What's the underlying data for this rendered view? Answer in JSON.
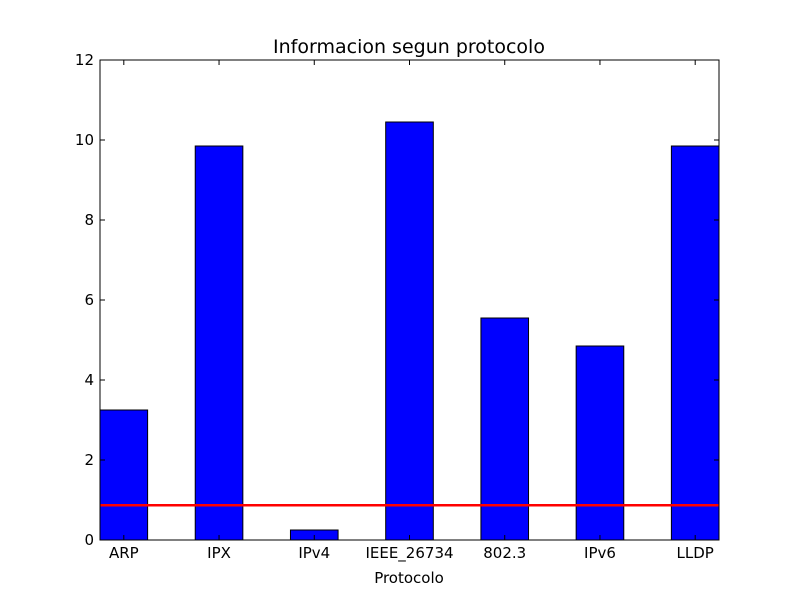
{
  "chart_data": {
    "type": "bar",
    "title": "Informacion segun protocolo",
    "xlabel": "Protocolo",
    "ylabel": "",
    "categories": [
      "ARP",
      "IPX",
      "IPv4",
      "IEEE_26734",
      "802.3",
      "IPv6",
      "LLDP"
    ],
    "values": [
      3.25,
      9.85,
      0.25,
      10.45,
      5.55,
      4.85,
      9.85
    ],
    "ylim": [
      0,
      12
    ],
    "yticks": [
      "0",
      "2",
      "4",
      "6",
      "8",
      "10",
      "12"
    ],
    "reference_line": {
      "y": 0.87
    },
    "grid": false,
    "legend": "none",
    "colors": {
      "bar": "#0000ff",
      "bar_edge": "#000000",
      "reference_line": "#ff0000"
    }
  }
}
